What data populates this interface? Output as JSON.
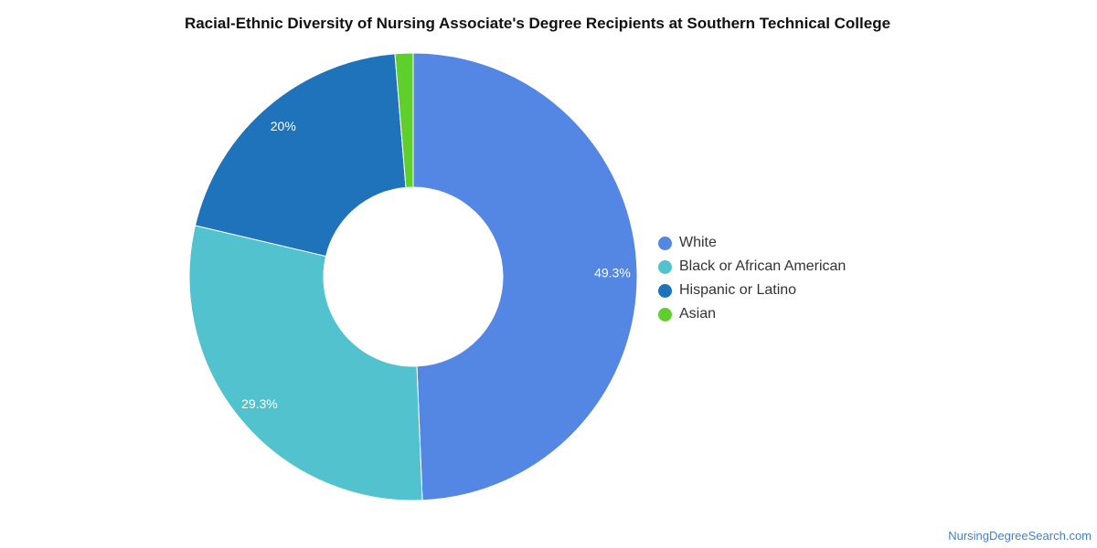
{
  "chart_data": {
    "type": "pie",
    "title": "Racial-Ethnic Diversity of Nursing Associate's Degree Recipients at Southern Technical College",
    "donut": true,
    "categories": [
      "White",
      "Black or African American",
      "Hispanic or Latino",
      "Asian"
    ],
    "values": [
      49.3,
      29.3,
      20.0,
      1.3
    ],
    "data_labels": [
      "49.3%",
      "29.3%",
      "20%",
      ""
    ],
    "colors": [
      "#5486e3",
      "#52c2cf",
      "#1e73bb",
      "#5fcf2c"
    ],
    "legend_position": "right"
  },
  "watermark": "NursingDegreeSearch.com"
}
